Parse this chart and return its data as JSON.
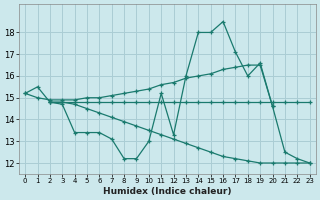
{
  "background_color": "#cce8ec",
  "grid_color": "#aacdd4",
  "line_color": "#1a7a6e",
  "xlabel": "Humidex (Indice chaleur)",
  "ylim": [
    11.5,
    19.3
  ],
  "xlim": [
    -0.5,
    23.5
  ],
  "yticks": [
    12,
    13,
    14,
    15,
    16,
    17,
    18
  ],
  "xticks": [
    0,
    1,
    2,
    3,
    4,
    5,
    6,
    7,
    8,
    9,
    10,
    11,
    12,
    13,
    14,
    15,
    16,
    17,
    18,
    19,
    20,
    21,
    22,
    23
  ],
  "series": [
    {
      "x": [
        0,
        1,
        2,
        3,
        4,
        5,
        6,
        7,
        8,
        9,
        10,
        11,
        12,
        13,
        14,
        15,
        16,
        17,
        18,
        19,
        20,
        21,
        22,
        23
      ],
      "y": [
        15.2,
        15.5,
        14.8,
        14.7,
        13.4,
        13.4,
        13.4,
        13.1,
        12.2,
        12.2,
        13.0,
        15.2,
        13.3,
        16.0,
        18.0,
        18.0,
        18.5,
        17.1,
        16.0,
        16.6,
        14.6,
        12.5,
        12.2,
        12.0
      ]
    },
    {
      "x": [
        0,
        1,
        2,
        3,
        4,
        5,
        6,
        7,
        8,
        9,
        10,
        11,
        12,
        13,
        14,
        15,
        16,
        17,
        18,
        19,
        20
      ],
      "y": [
        15.2,
        15.0,
        14.9,
        14.9,
        14.9,
        15.0,
        15.0,
        15.1,
        15.2,
        15.3,
        15.4,
        15.6,
        15.7,
        15.9,
        16.0,
        16.1,
        16.3,
        16.4,
        16.5,
        16.5,
        14.6
      ]
    },
    {
      "x": [
        2,
        3,
        4,
        5,
        6,
        7,
        8,
        9,
        10,
        11,
        12,
        13,
        14,
        15,
        16,
        17,
        18,
        19,
        20,
        21,
        22,
        23
      ],
      "y": [
        14.8,
        14.8,
        14.7,
        14.5,
        14.3,
        14.1,
        13.9,
        13.7,
        13.5,
        13.3,
        13.1,
        12.9,
        12.7,
        12.5,
        12.3,
        12.2,
        12.1,
        12.0,
        12.0,
        12.0,
        12.0,
        12.0
      ]
    },
    {
      "x": [
        2,
        3,
        4,
        5,
        6,
        7,
        8,
        9,
        10,
        11,
        12,
        13,
        14,
        15,
        16,
        17,
        18,
        19,
        20,
        21,
        22,
        23
      ],
      "y": [
        14.8,
        14.8,
        14.8,
        14.8,
        14.8,
        14.8,
        14.8,
        14.8,
        14.8,
        14.8,
        14.8,
        14.8,
        14.8,
        14.8,
        14.8,
        14.8,
        14.8,
        14.8,
        14.8,
        14.8,
        14.8,
        14.8
      ]
    }
  ]
}
